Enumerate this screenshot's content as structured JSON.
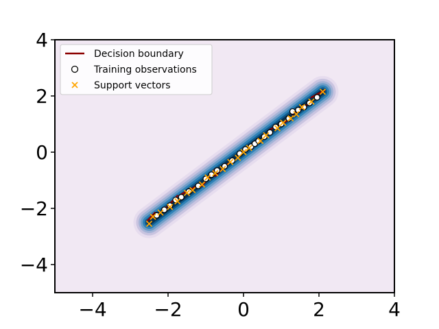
{
  "chart_data": {
    "type": "scatter",
    "title": "",
    "xlabel": "",
    "ylabel": "",
    "xlim": [
      -5,
      4
    ],
    "ylim": [
      -5,
      4
    ],
    "x_ticks": [
      -4,
      -2,
      0,
      2,
      4
    ],
    "y_ticks": [
      -4,
      -2,
      0,
      2,
      4
    ],
    "x_tick_labels": [
      "−4",
      "−2",
      "0",
      "2",
      "4"
    ],
    "y_tick_labels": [
      "−4",
      "−2",
      "0",
      "2",
      "4"
    ],
    "grid": false,
    "legend_position": "top-left",
    "colors": {
      "background": "#f1e8f3",
      "contour_levels": [
        "#e6dcee",
        "#c9c4e0",
        "#a3b3d6",
        "#6f9ec8",
        "#2f82b7",
        "#0f5a8c",
        "#063050"
      ],
      "decision_boundary": "#8b0000",
      "training_fill": "#ffffff",
      "training_edge": "#000000",
      "support_vectors": "#ffa500"
    },
    "band": {
      "start": [
        -2.5,
        -2.5
      ],
      "end": [
        2.1,
        2.15
      ]
    },
    "series": [
      {
        "name": "Decision boundary",
        "type": "contour-line",
        "segments": [
          {
            "x": [
              -2.55,
              -2.35
            ],
            "y": [
              -2.45,
              -2.15
            ]
          },
          {
            "x": [
              -2.1,
              -1.75
            ],
            "y": [
              -2.05,
              -1.55
            ]
          },
          {
            "x": [
              -1.65,
              -1.15
            ],
            "y": [
              -1.5,
              -1.15
            ]
          },
          {
            "x": [
              -1.1,
              -0.75
            ],
            "y": [
              -1.2,
              -0.6
            ]
          },
          {
            "x": [
              -0.75,
              -0.4
            ],
            "y": [
              -0.85,
              -0.4
            ]
          },
          {
            "x": [
              0.7,
              1.2
            ],
            "y": [
              0.8,
              1.15
            ]
          },
          {
            "x": [
              1.3,
              1.7
            ],
            "y": [
              1.35,
              1.7
            ]
          },
          {
            "x": [
              1.8,
              2.15
            ],
            "y": [
              1.95,
              2.2
            ]
          }
        ]
      },
      {
        "name": "Training observations",
        "type": "scatter",
        "x": [
          -2.3,
          -2.1,
          -1.95,
          -1.8,
          -1.65,
          -1.45,
          -1.2,
          -1.0,
          -0.85,
          -0.7,
          -0.5,
          -0.3,
          -0.1,
          0.05,
          0.2,
          0.3,
          0.4,
          0.55,
          0.7,
          0.85,
          1.0,
          1.2,
          1.3,
          1.45,
          1.6,
          1.75,
          1.95
        ],
        "y": [
          -2.25,
          -2.05,
          -1.9,
          -1.7,
          -1.6,
          -1.4,
          -1.2,
          -0.95,
          -0.8,
          -0.65,
          -0.5,
          -0.3,
          -0.05,
          0.1,
          0.2,
          0.3,
          0.4,
          0.55,
          0.7,
          0.9,
          1.0,
          1.2,
          1.45,
          1.5,
          1.6,
          1.75,
          1.95
        ]
      },
      {
        "name": "Support vectors",
        "type": "scatter",
        "x": [
          -2.5,
          -2.4,
          -2.2,
          -1.95,
          -1.75,
          -1.5,
          -1.35,
          -1.1,
          -0.95,
          -0.75,
          -0.55,
          -0.35,
          -0.15,
          0.0,
          0.15,
          0.45,
          0.6,
          0.9,
          1.05,
          1.25,
          1.4,
          1.55,
          1.8,
          2.1
        ],
        "y": [
          -2.55,
          -2.3,
          -2.15,
          -1.95,
          -1.75,
          -1.45,
          -1.35,
          -1.15,
          -0.9,
          -0.75,
          -0.6,
          -0.35,
          -0.2,
          0.0,
          0.15,
          0.4,
          0.6,
          0.85,
          1.05,
          1.2,
          1.35,
          1.6,
          1.8,
          2.15
        ]
      }
    ],
    "legend": [
      {
        "label": "Decision boundary",
        "marker": "line"
      },
      {
        "label": "Training observations",
        "marker": "circle"
      },
      {
        "label": "Support vectors",
        "marker": "x"
      }
    ]
  }
}
